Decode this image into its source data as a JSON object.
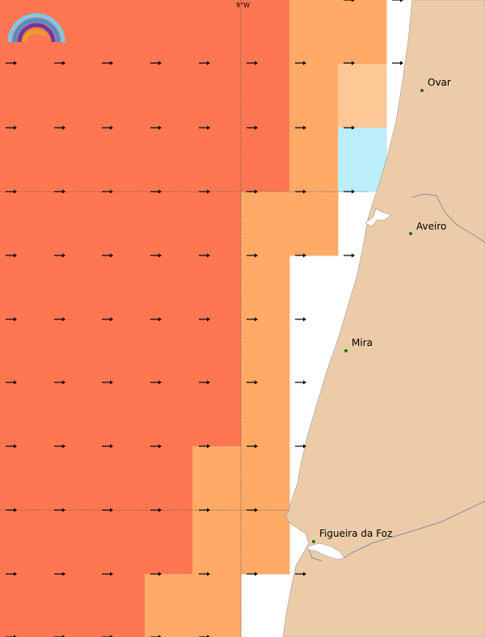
{
  "colors": {
    "high": "#ff7752",
    "medium": "#ffaa67",
    "low": "#ffc896",
    "lowest": "#bcedfb",
    "land": "#eccca8",
    "water": "#ffffff",
    "gridline": "#555555",
    "arrow": "#000000",
    "city_dot": "#0a7a0a"
  },
  "grid": {
    "longitude_label": "9°W"
  },
  "cities": [
    {
      "name": "Ovar"
    },
    {
      "name": "Aveiro"
    },
    {
      "name": "Mira"
    },
    {
      "name": "Figueira da Foz"
    }
  ],
  "legend": {
    "logo_icon": "rainbow-logo-icon"
  }
}
